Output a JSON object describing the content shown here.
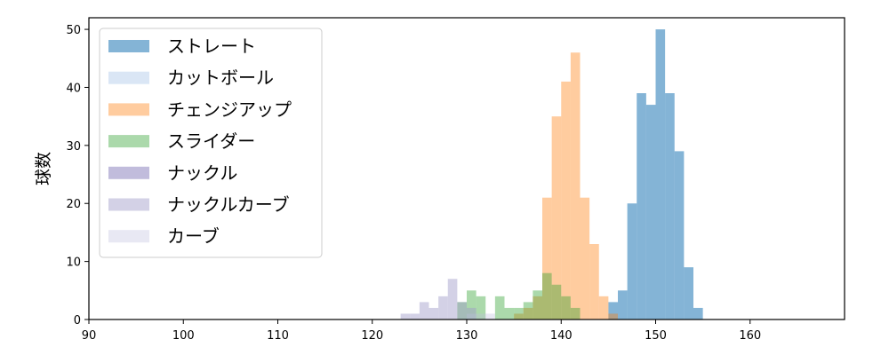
{
  "chart_data": {
    "type": "histogram",
    "title": "",
    "xlabel": "",
    "ylabel": "球数",
    "xlim": [
      90,
      170
    ],
    "ylim": [
      0,
      52
    ],
    "xticks": [
      90,
      100,
      110,
      120,
      130,
      140,
      150,
      160
    ],
    "yticks": [
      0,
      10,
      20,
      30,
      40,
      50
    ],
    "grid": false,
    "legend_position": "upper-left",
    "bin_width": 1,
    "series": [
      {
        "name": "ストレート",
        "color": "#1f77b4",
        "opacity": 0.55,
        "bins": [
          [
            145,
            3
          ],
          [
            146,
            5
          ],
          [
            147,
            20
          ],
          [
            148,
            39
          ],
          [
            149,
            37
          ],
          [
            150,
            50
          ],
          [
            151,
            39
          ],
          [
            152,
            29
          ],
          [
            153,
            9
          ],
          [
            154,
            2
          ]
        ]
      },
      {
        "name": "カットボール",
        "color": "#aec7e8",
        "opacity": 0.45,
        "bins": []
      },
      {
        "name": "チェンジアップ",
        "color": "#ff7f0e",
        "opacity": 0.4,
        "bins": [
          [
            135,
            1
          ],
          [
            136,
            2
          ],
          [
            137,
            4
          ],
          [
            138,
            21
          ],
          [
            139,
            35
          ],
          [
            140,
            41
          ],
          [
            141,
            46
          ],
          [
            142,
            21
          ],
          [
            143,
            13
          ],
          [
            144,
            4
          ],
          [
            145,
            1
          ]
        ]
      },
      {
        "name": "スライダー",
        "color": "#2ca02c",
        "opacity": 0.4,
        "bins": [
          [
            129,
            3
          ],
          [
            130,
            5
          ],
          [
            131,
            4
          ],
          [
            133,
            4
          ],
          [
            134,
            2
          ],
          [
            135,
            2
          ],
          [
            136,
            3
          ],
          [
            137,
            5
          ],
          [
            138,
            8
          ],
          [
            139,
            6
          ],
          [
            140,
            4
          ],
          [
            141,
            2
          ]
        ]
      },
      {
        "name": "ナックル",
        "color": "#756bb1",
        "opacity": 0.45,
        "bins": []
      },
      {
        "name": "ナックルカーブ",
        "color": "#9e9ac8",
        "opacity": 0.45,
        "bins": [
          [
            123,
            1
          ],
          [
            124,
            1
          ],
          [
            125,
            3
          ],
          [
            126,
            2
          ],
          [
            127,
            4
          ],
          [
            128,
            7
          ],
          [
            129,
            3
          ],
          [
            130,
            2
          ]
        ]
      },
      {
        "name": "カーブ",
        "color": "#bcbddc",
        "opacity": 0.35,
        "bins": [
          [
            130,
            1
          ],
          [
            131,
            1
          ],
          [
            132,
            1
          ]
        ]
      }
    ]
  }
}
